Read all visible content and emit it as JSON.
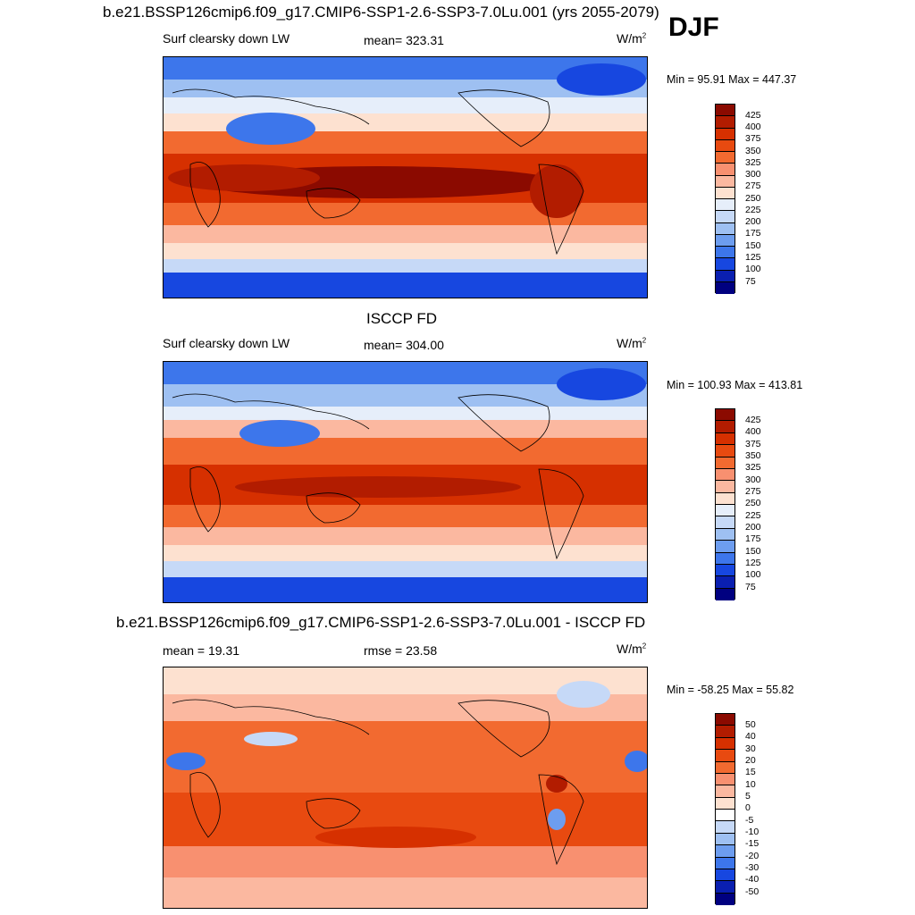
{
  "figure": {
    "season": "DJF",
    "panels": [
      {
        "title": "b.e21.BSSP126cmip6.f09_g17.CMIP6-SSP1-2.6-SSP3-7.0Lu.001 (yrs 2055-2079)",
        "left_label": "Surf clearsky down LW",
        "center_label": "mean= 323.31",
        "units": "W/m",
        "units_sup": "2",
        "minmax": "Min =  95.91 Max = 447.37",
        "colorbar_ticks": [
          "425",
          "400",
          "375",
          "350",
          "325",
          "300",
          "275",
          "250",
          "225",
          "200",
          "175",
          "150",
          "125",
          "100",
          "75"
        ],
        "kind": "abs"
      },
      {
        "title": "ISCCP FD",
        "left_label": "Surf clearsky down LW",
        "center_label": "mean= 304.00",
        "units": "W/m",
        "units_sup": "2",
        "minmax": "Min = 100.93 Max = 413.81",
        "colorbar_ticks": [
          "425",
          "400",
          "375",
          "350",
          "325",
          "300",
          "275",
          "250",
          "225",
          "200",
          "175",
          "150",
          "125",
          "100",
          "75"
        ],
        "kind": "abs"
      },
      {
        "title": "b.e21.BSSP126cmip6.f09_g17.CMIP6-SSP1-2.6-SSP3-7.0Lu.001 - ISCCP FD",
        "left_label": "mean =  19.31",
        "center_label": "rmse =  23.58",
        "units": "W/m",
        "units_sup": "2",
        "minmax": "Min = -58.25 Max =  55.82",
        "colorbar_ticks": [
          "50",
          "40",
          "30",
          "20",
          "15",
          "10",
          "5",
          "0",
          "-5",
          "-10",
          "-15",
          "-20",
          "-30",
          "-40",
          "-50"
        ],
        "kind": "diff"
      }
    ],
    "colors": {
      "abs_scale": [
        "#8b0a00",
        "#b21c00",
        "#d63000",
        "#e84a10",
        "#f26a30",
        "#f89070",
        "#fbb8a0",
        "#fde1d0",
        "#e6eefa",
        "#c6d9f7",
        "#9ec0f2",
        "#6d9def",
        "#3d76eb",
        "#1747e0",
        "#0a1fb0",
        "#000080"
      ],
      "diff_scale": [
        "#8b0a00",
        "#b21c00",
        "#d63000",
        "#e84a10",
        "#f26a30",
        "#f89070",
        "#fbb8a0",
        "#fde1d0",
        "#ffffff",
        "#c6d9f7",
        "#9ec0f2",
        "#6d9def",
        "#3d76eb",
        "#1747e0",
        "#0a1fb0",
        "#000080"
      ]
    }
  }
}
